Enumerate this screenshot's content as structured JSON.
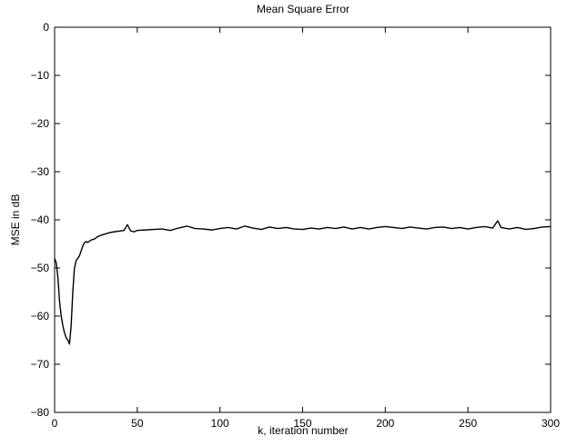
{
  "chart_data": {
    "type": "line",
    "title": "Mean Square Error",
    "xlabel": "k, iteration number",
    "ylabel": "MSE in dB",
    "xlim": [
      0,
      300
    ],
    "ylim": [
      -80,
      0
    ],
    "xticks": [
      0,
      50,
      100,
      150,
      200,
      250,
      300
    ],
    "yticks": [
      0,
      -10,
      -20,
      -30,
      -40,
      -50,
      -60,
      -70,
      -80
    ],
    "xtick_labels": [
      "0",
      "50",
      "100",
      "150",
      "200",
      "250",
      "300"
    ],
    "ytick_labels": [
      "0",
      "−10",
      "−20",
      "−30",
      "−40",
      "−50",
      "−60",
      "−70",
      "−80"
    ],
    "grid": false,
    "line_color": "#000000",
    "series": [
      {
        "x": [
          0,
          1,
          2,
          3,
          4,
          5,
          6,
          7,
          8,
          9,
          10,
          11,
          12,
          13,
          14,
          15,
          16,
          17,
          18,
          19,
          20,
          22,
          24,
          26,
          28,
          30,
          32,
          34,
          36,
          38,
          40,
          42,
          44,
          46,
          48,
          50,
          55,
          60,
          65,
          70,
          75,
          80,
          85,
          90,
          95,
          100,
          105,
          110,
          115,
          120,
          125,
          130,
          135,
          140,
          145,
          150,
          155,
          160,
          165,
          170,
          175,
          180,
          185,
          190,
          195,
          200,
          205,
          210,
          215,
          220,
          225,
          230,
          235,
          240,
          245,
          250,
          255,
          260,
          265,
          268,
          270,
          275,
          280,
          285,
          290,
          295,
          300
        ],
        "values": [
          -48,
          -49,
          -52,
          -57,
          -60,
          -62,
          -63.5,
          -64.5,
          -65,
          -65.8,
          -62,
          -55,
          -50,
          -48.5,
          -48,
          -47.5,
          -46.5,
          -45.5,
          -44.8,
          -44.5,
          -44.7,
          -44.2,
          -44,
          -43.5,
          -43.2,
          -43,
          -42.8,
          -42.6,
          -42.5,
          -42.4,
          -42.3,
          -42.2,
          -41,
          -42.3,
          -42.5,
          -42.2,
          -42.1,
          -42,
          -41.9,
          -42.2,
          -41.7,
          -41.3,
          -41.8,
          -41.9,
          -42.1,
          -41.8,
          -41.6,
          -41.9,
          -41.3,
          -41.7,
          -42,
          -41.5,
          -41.8,
          -41.6,
          -41.9,
          -42,
          -41.7,
          -41.9,
          -41.6,
          -41.8,
          -41.5,
          -41.9,
          -41.6,
          -41.9,
          -41.6,
          -41.4,
          -41.6,
          -41.8,
          -41.5,
          -41.7,
          -41.9,
          -41.6,
          -41.5,
          -41.8,
          -41.6,
          -41.9,
          -41.6,
          -41.4,
          -41.7,
          -40.2,
          -41.6,
          -41.9,
          -41.6,
          -42,
          -41.8,
          -41.5,
          -41.4
        ]
      }
    ]
  }
}
